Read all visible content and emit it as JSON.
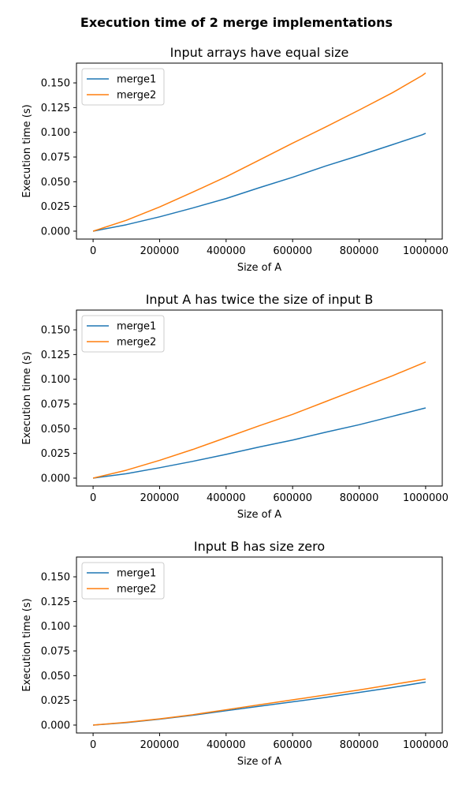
{
  "figure": {
    "suptitle": "Execution time of 2 merge implementations"
  },
  "chart_data": [
    {
      "type": "line",
      "title": "Input arrays have equal size",
      "xlabel": "Size of A",
      "ylabel": "Execution time (s)",
      "xlim": [
        -50000,
        1050000
      ],
      "ylim": [
        -0.008,
        0.17
      ],
      "xticks": [
        0,
        200000,
        400000,
        600000,
        800000,
        1000000
      ],
      "xtick_labels": [
        "0",
        "200000",
        "400000",
        "600000",
        "800000",
        "1000000"
      ],
      "yticks": [
        0,
        0.025,
        0.05,
        0.075,
        0.1,
        0.125,
        0.15
      ],
      "ytick_labels": [
        "0.000",
        "0.025",
        "0.050",
        "0.075",
        "0.100",
        "0.125",
        "0.150"
      ],
      "legend_position": "upper-left",
      "grid": false,
      "x": [
        0,
        100000,
        200000,
        300000,
        400000,
        500000,
        600000,
        700000,
        800000,
        900000,
        990000,
        1000000
      ],
      "series": [
        {
          "name": "merge1",
          "color": "#1f77b4",
          "values": [
            0,
            0.0065,
            0.0145,
            0.0235,
            0.033,
            0.044,
            0.0545,
            0.066,
            0.0765,
            0.0875,
            0.0975,
            0.099
          ]
        },
        {
          "name": "merge2",
          "color": "#ff7f0e",
          "values": [
            0,
            0.011,
            0.0245,
            0.0395,
            0.055,
            0.072,
            0.089,
            0.1055,
            0.1225,
            0.14,
            0.1575,
            0.16
          ]
        }
      ]
    },
    {
      "type": "line",
      "title": "Input A has twice the size of input B",
      "xlabel": "Size of A",
      "ylabel": "Execution time (s)",
      "xlim": [
        -50000,
        1050000
      ],
      "ylim": [
        -0.008,
        0.17
      ],
      "xticks": [
        0,
        200000,
        400000,
        600000,
        800000,
        1000000
      ],
      "xtick_labels": [
        "0",
        "200000",
        "400000",
        "600000",
        "800000",
        "1000000"
      ],
      "yticks": [
        0,
        0.025,
        0.05,
        0.075,
        0.1,
        0.125,
        0.15
      ],
      "ytick_labels": [
        "0.000",
        "0.025",
        "0.050",
        "0.075",
        "0.100",
        "0.125",
        "0.150"
      ],
      "legend_position": "upper-left",
      "grid": false,
      "x": [
        0,
        100000,
        200000,
        300000,
        400000,
        500000,
        600000,
        700000,
        800000,
        900000,
        1000000
      ],
      "series": [
        {
          "name": "merge1",
          "color": "#1f77b4",
          "values": [
            0,
            0.0045,
            0.0105,
            0.017,
            0.024,
            0.0315,
            0.0385,
            0.0465,
            0.054,
            0.0625,
            0.071
          ]
        },
        {
          "name": "merge2",
          "color": "#ff7f0e",
          "values": [
            0,
            0.008,
            0.018,
            0.029,
            0.041,
            0.053,
            0.0645,
            0.0775,
            0.0905,
            0.1035,
            0.1175
          ]
        }
      ]
    },
    {
      "type": "line",
      "title": "Input B has size zero",
      "xlabel": "Size of A",
      "ylabel": "Execution time (s)",
      "xlim": [
        -50000,
        1050000
      ],
      "ylim": [
        -0.008,
        0.17
      ],
      "xticks": [
        0,
        200000,
        400000,
        600000,
        800000,
        1000000
      ],
      "xtick_labels": [
        "0",
        "200000",
        "400000",
        "600000",
        "800000",
        "1000000"
      ],
      "yticks": [
        0,
        0.025,
        0.05,
        0.075,
        0.1,
        0.125,
        0.15
      ],
      "ytick_labels": [
        "0.000",
        "0.025",
        "0.050",
        "0.075",
        "0.100",
        "0.125",
        "0.150"
      ],
      "legend_position": "upper-left",
      "grid": false,
      "x": [
        0,
        100000,
        200000,
        300000,
        400000,
        500000,
        600000,
        700000,
        800000,
        900000,
        1000000
      ],
      "series": [
        {
          "name": "merge1",
          "color": "#1f77b4",
          "values": [
            0,
            0.0025,
            0.006,
            0.01,
            0.0145,
            0.019,
            0.0235,
            0.028,
            0.033,
            0.038,
            0.0435
          ]
        },
        {
          "name": "merge2",
          "color": "#ff7f0e",
          "values": [
            0,
            0.0028,
            0.0063,
            0.0105,
            0.0155,
            0.0205,
            0.0255,
            0.0305,
            0.0355,
            0.041,
            0.0465
          ]
        }
      ]
    }
  ]
}
